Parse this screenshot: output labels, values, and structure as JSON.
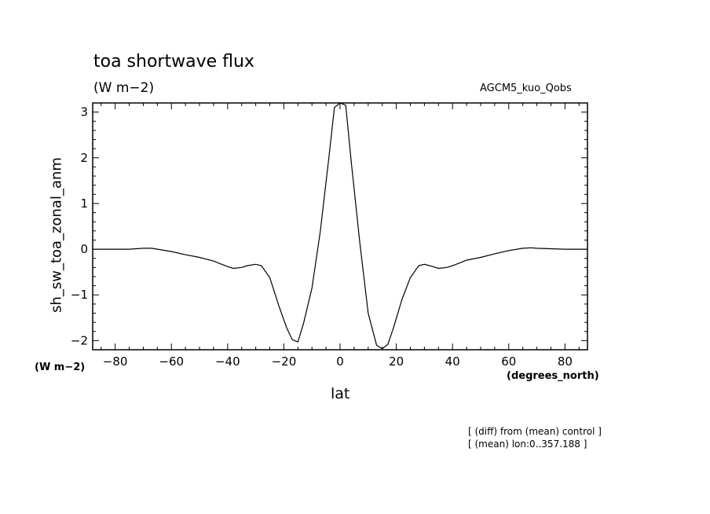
{
  "title": "toa shortwave flux",
  "units": "(W m−2)",
  "run_label": "AGCM5_kuo_Qobs",
  "y_unit_label": "(W m−2)",
  "x_unit_label": "(degrees_north)",
  "notes": [
    "[ (diff) from (mean) control ]",
    "[ (mean) lon:0..357.188 ]"
  ],
  "chart_data": {
    "type": "line",
    "xlabel": "lat",
    "ylabel": "sh_sw_toa_zonal_anm",
    "xlim": [
      -88,
      88
    ],
    "ylim": [
      -2.2,
      3.2
    ],
    "xticks": [
      -80,
      -60,
      -40,
      -20,
      0,
      20,
      40,
      60,
      80
    ],
    "yticks": [
      -2,
      -1,
      0,
      1,
      2,
      3
    ],
    "x_tick_labels": [
      "−80",
      "−60",
      "−40",
      "−20",
      "0",
      "20",
      "40",
      "60",
      "80"
    ],
    "y_tick_labels": [
      "−2",
      "−1",
      "0",
      "1",
      "2",
      "3"
    ],
    "grid": false,
    "series": [
      {
        "x": [
          -88,
          -80,
          -75,
          -70,
          -67,
          -60,
          -55,
          -50,
          -45,
          -40,
          -38,
          -35,
          -33,
          -30,
          -28,
          -25,
          -22,
          -19,
          -17,
          -15,
          -13,
          -10,
          -7,
          -4,
          -2,
          0,
          2,
          4,
          7,
          10,
          13,
          15,
          17,
          19,
          22,
          25,
          28,
          30,
          33,
          35,
          38,
          40,
          43,
          45,
          50,
          55,
          60,
          65,
          68,
          70,
          75,
          80,
          88
        ],
        "y": [
          0,
          0,
          0,
          0.02,
          0.02,
          -0.05,
          -0.12,
          -0.18,
          -0.26,
          -0.38,
          -0.42,
          -0.4,
          -0.36,
          -0.33,
          -0.36,
          -0.62,
          -1.2,
          -1.72,
          -1.98,
          -2.03,
          -1.62,
          -0.85,
          0.4,
          2.0,
          3.1,
          3.2,
          3.15,
          1.9,
          0.15,
          -1.4,
          -2.1,
          -2.18,
          -2.08,
          -1.72,
          -1.1,
          -0.62,
          -0.36,
          -0.33,
          -0.38,
          -0.42,
          -0.4,
          -0.36,
          -0.29,
          -0.24,
          -0.18,
          -0.1,
          -0.03,
          0.02,
          0.03,
          0.02,
          0.01,
          0,
          0
        ]
      }
    ]
  }
}
